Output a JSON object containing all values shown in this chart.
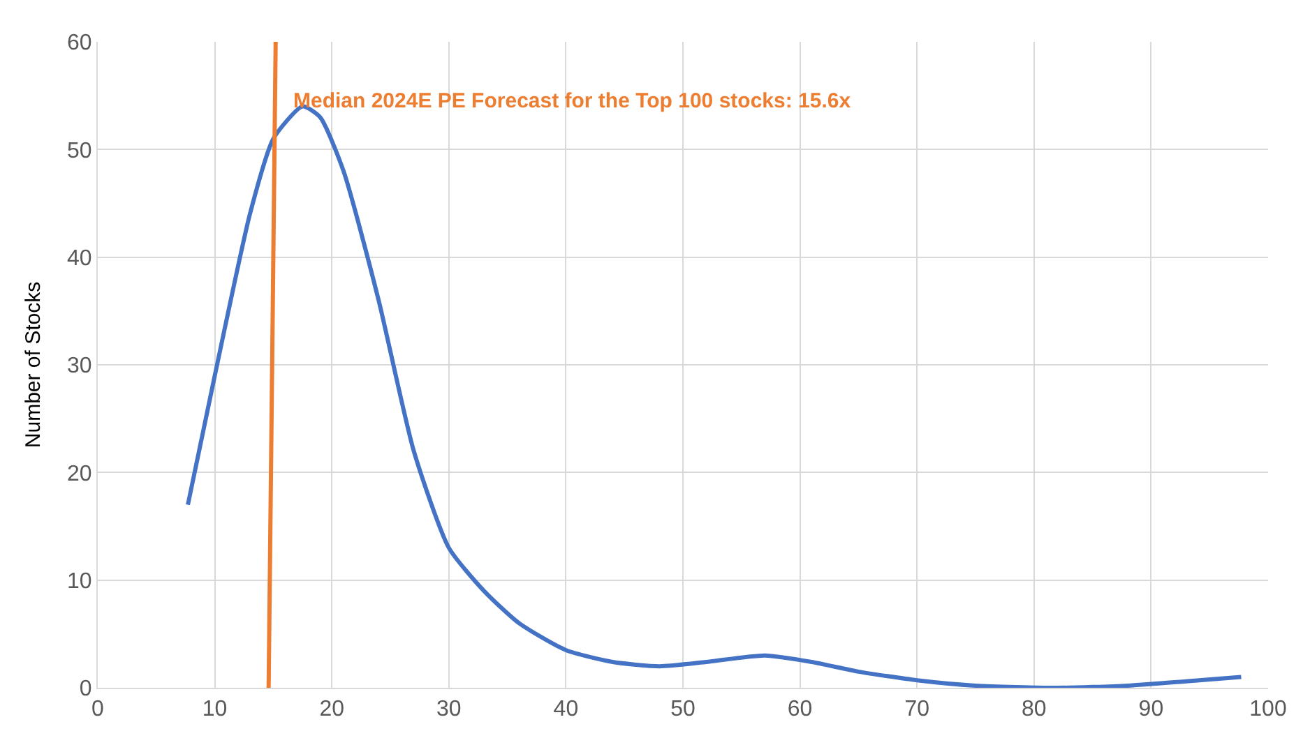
{
  "chart_data": {
    "type": "line",
    "ylabel": "Number of Stocks",
    "series": [
      {
        "color": "#4472c4",
        "x": [
          7.7,
          10,
          13,
          15,
          17.5,
          19,
          21,
          24,
          27,
          30,
          33,
          36,
          40,
          44,
          48,
          52,
          57,
          61,
          65,
          70,
          75,
          82,
          88,
          93,
          97.7
        ],
        "values": [
          17,
          29,
          44,
          51,
          54,
          53,
          48,
          36,
          22,
          13,
          9,
          6,
          3.5,
          2.4,
          2,
          2.4,
          3,
          2.4,
          1.5,
          0.7,
          0.2,
          0,
          0.2,
          0.6,
          1
        ]
      },
      {
        "color": "#ed7d31",
        "x": [
          14.6,
          15.2
        ],
        "values": [
          0,
          60
        ]
      }
    ],
    "annotations": [
      "Median 2024E PE Forecast for the Top 100 stocks: 15.6x"
    ],
    "xlim": [
      0,
      100
    ],
    "xticks": [
      0,
      10,
      20,
      30,
      40,
      50,
      60,
      70,
      80,
      90,
      100
    ],
    "ylim": [
      0,
      60
    ],
    "yticks": [
      0,
      10,
      20,
      30,
      40,
      50,
      60
    ],
    "grid": true,
    "marker": "none",
    "line_style": "solid"
  }
}
